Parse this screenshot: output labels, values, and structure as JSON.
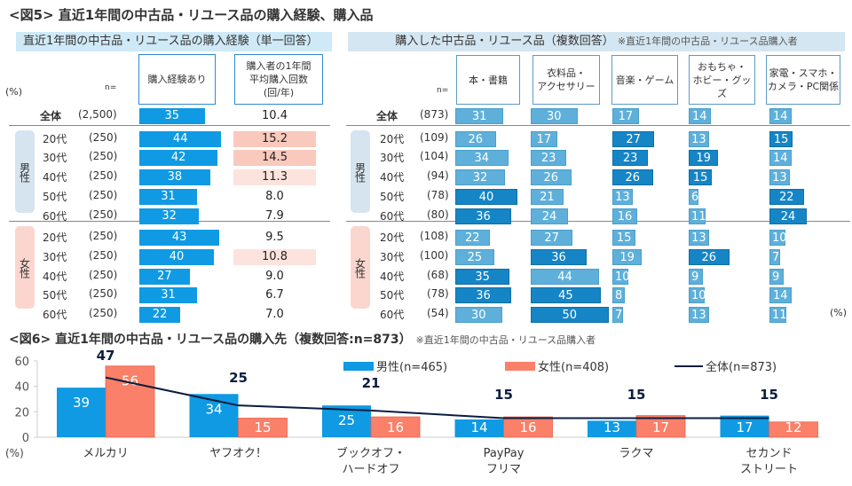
{
  "fig5": {
    "title": "<図5> 直近1年間の中古品・リユース品の購入経験、購入品",
    "left_band": "直近1年間の中古品・リユース品の購入経験（単一回答）",
    "right_band": "購入した中古品・リユース品（複数回答）",
    "right_band_note": "※直近1年間の中古品・リユース品購入者",
    "pct_label": "(%)",
    "n_label": "n=",
    "pct_label_bottom": "(%)",
    "col_experience": "購入経験あり",
    "col_avg_line1": "購入者の1年間",
    "col_avg_line2": "平均購入回数",
    "col_avg_line3": "(回/年)",
    "male_label": "男性",
    "female_label": "女性",
    "left_rows": [
      {
        "label": "全体",
        "n": "(2,500)",
        "experience": 35,
        "avg": "10.4",
        "heat": "none"
      },
      {
        "label": "20代",
        "n": "(250)",
        "experience": 44,
        "avg": "15.2",
        "heat": "high"
      },
      {
        "label": "30代",
        "n": "(250)",
        "experience": 42,
        "avg": "14.5",
        "heat": "high"
      },
      {
        "label": "40代",
        "n": "(250)",
        "experience": 38,
        "avg": "11.3",
        "heat": "mid"
      },
      {
        "label": "50代",
        "n": "(250)",
        "experience": 31,
        "avg": "8.0",
        "heat": "none"
      },
      {
        "label": "60代",
        "n": "(250)",
        "experience": 32,
        "avg": "7.9",
        "heat": "none"
      },
      {
        "label": "20代",
        "n": "(250)",
        "experience": 43,
        "avg": "9.5",
        "heat": "none"
      },
      {
        "label": "30代",
        "n": "(250)",
        "experience": 40,
        "avg": "10.8",
        "heat": "mid"
      },
      {
        "label": "40代",
        "n": "(250)",
        "experience": 27,
        "avg": "9.0",
        "heat": "none"
      },
      {
        "label": "50代",
        "n": "(250)",
        "experience": 31,
        "avg": "6.7",
        "heat": "none"
      },
      {
        "label": "60代",
        "n": "(250)",
        "experience": 22,
        "avg": "7.0",
        "heat": "none"
      }
    ],
    "categories": [
      "本・書籍",
      "衣料品・\nアクセサリー",
      "音楽・ゲーム",
      "おもちゃ・\nホビー・グッズ",
      "家電・スマホ・\nカメラ・PC関係"
    ],
    "right_rows": [
      {
        "label": "全体",
        "n": "(873)",
        "values": [
          31,
          30,
          17,
          14,
          14
        ],
        "hi": [
          0,
          0,
          0,
          0,
          0
        ]
      },
      {
        "label": "20代",
        "n": "(109)",
        "values": [
          26,
          17,
          27,
          13,
          15
        ],
        "hi": [
          0,
          0,
          1,
          0,
          1
        ]
      },
      {
        "label": "30代",
        "n": "(104)",
        "values": [
          34,
          23,
          23,
          19,
          14
        ],
        "hi": [
          0,
          0,
          1,
          1,
          0
        ]
      },
      {
        "label": "40代",
        "n": "(94)",
        "values": [
          32,
          26,
          26,
          15,
          13
        ],
        "hi": [
          0,
          0,
          1,
          1,
          0
        ]
      },
      {
        "label": "50代",
        "n": "(78)",
        "values": [
          40,
          21,
          13,
          6,
          22
        ],
        "hi": [
          1,
          0,
          0,
          0,
          1
        ]
      },
      {
        "label": "60代",
        "n": "(80)",
        "values": [
          36,
          24,
          16,
          11,
          24
        ],
        "hi": [
          1,
          0,
          0,
          0,
          1
        ]
      },
      {
        "label": "20代",
        "n": "(108)",
        "values": [
          22,
          27,
          15,
          13,
          10
        ],
        "hi": [
          0,
          0,
          0,
          0,
          0
        ]
      },
      {
        "label": "30代",
        "n": "(100)",
        "values": [
          25,
          36,
          19,
          26,
          7
        ],
        "hi": [
          0,
          1,
          0,
          1,
          0
        ]
      },
      {
        "label": "40代",
        "n": "(68)",
        "values": [
          35,
          44,
          10,
          9,
          9
        ],
        "hi": [
          1,
          0,
          0,
          0,
          0
        ]
      },
      {
        "label": "50代",
        "n": "(78)",
        "values": [
          36,
          45,
          8,
          10,
          14
        ],
        "hi": [
          1,
          1,
          0,
          0,
          0
        ]
      },
      {
        "label": "60代",
        "n": "(54)",
        "values": [
          30,
          50,
          7,
          13,
          11
        ],
        "hi": [
          0,
          1,
          0,
          0,
          0
        ]
      }
    ]
  },
  "fig6": {
    "title": "<図6> 直近1年間の中古品・リユース品の購入先（複数回答:n=873）",
    "note": "※直近1年間の中古品・リユース品購入者",
    "colors": {
      "male": "#0f9ae3",
      "female": "#fa8069",
      "total": "#0b1d3f"
    }
  },
  "chart_data": [
    {
      "type": "bar",
      "title": "直近1年間の中古品・リユース品の購入経験（単一回答）",
      "categories": [
        "全体",
        "男性20代",
        "男性30代",
        "男性40代",
        "男性50代",
        "男性60代",
        "女性20代",
        "女性30代",
        "女性40代",
        "女性50代",
        "女性60代"
      ],
      "series": [
        {
          "name": "購入経験あり(%)",
          "values": [
            35,
            44,
            42,
            38,
            31,
            32,
            43,
            40,
            27,
            31,
            22
          ]
        },
        {
          "name": "購入者の1年間平均購入回数(回/年)",
          "values": [
            10.4,
            15.2,
            14.5,
            11.3,
            8.0,
            7.9,
            9.5,
            10.8,
            9.0,
            6.7,
            7.0
          ]
        }
      ]
    },
    {
      "type": "bar",
      "title": "購入した中古品・リユース品（複数回答）",
      "categories": [
        "本・書籍",
        "衣料品・アクセサリー",
        "音楽・ゲーム",
        "おもちゃ・ホビー・グッズ",
        "家電・スマホ・カメラ・PC関係"
      ],
      "series": [
        {
          "name": "全体",
          "values": [
            31,
            30,
            17,
            14,
            14
          ]
        },
        {
          "name": "男性20代",
          "values": [
            26,
            17,
            27,
            13,
            15
          ]
        },
        {
          "name": "男性30代",
          "values": [
            34,
            23,
            23,
            19,
            14
          ]
        },
        {
          "name": "男性40代",
          "values": [
            32,
            26,
            26,
            15,
            13
          ]
        },
        {
          "name": "男性50代",
          "values": [
            40,
            21,
            13,
            6,
            22
          ]
        },
        {
          "name": "男性60代",
          "values": [
            36,
            24,
            16,
            11,
            24
          ]
        },
        {
          "name": "女性20代",
          "values": [
            22,
            27,
            15,
            13,
            10
          ]
        },
        {
          "name": "女性30代",
          "values": [
            25,
            36,
            19,
            26,
            7
          ]
        },
        {
          "name": "女性40代",
          "values": [
            35,
            44,
            10,
            9,
            9
          ]
        },
        {
          "name": "女性50代",
          "values": [
            36,
            45,
            8,
            10,
            14
          ]
        },
        {
          "name": "女性60代",
          "values": [
            30,
            50,
            7,
            13,
            11
          ]
        }
      ]
    },
    {
      "type": "bar",
      "title": "直近1年間の中古品・リユース品の購入先（複数回答:n=873）",
      "categories": [
        "メルカリ",
        "ヤフオク！",
        "ブックオフ・\nハードオフ",
        "PayPay\nフリマ",
        "ラクマ",
        "セカンド\nストリート"
      ],
      "series": [
        {
          "name": "男性(n=465)",
          "type": "bar",
          "values": [
            39,
            34,
            25,
            14,
            13,
            17
          ]
        },
        {
          "name": "女性(n=408)",
          "type": "bar",
          "values": [
            56,
            15,
            16,
            16,
            17,
            12
          ]
        },
        {
          "name": "全体(n=873)",
          "type": "line",
          "values": [
            47,
            25,
            21,
            15,
            15,
            15
          ]
        }
      ],
      "yticks": [
        0,
        20,
        40,
        60
      ],
      "ylim": [
        0,
        60
      ],
      "ylabel": "(%)",
      "legend": "top-right",
      "grid": false
    }
  ]
}
